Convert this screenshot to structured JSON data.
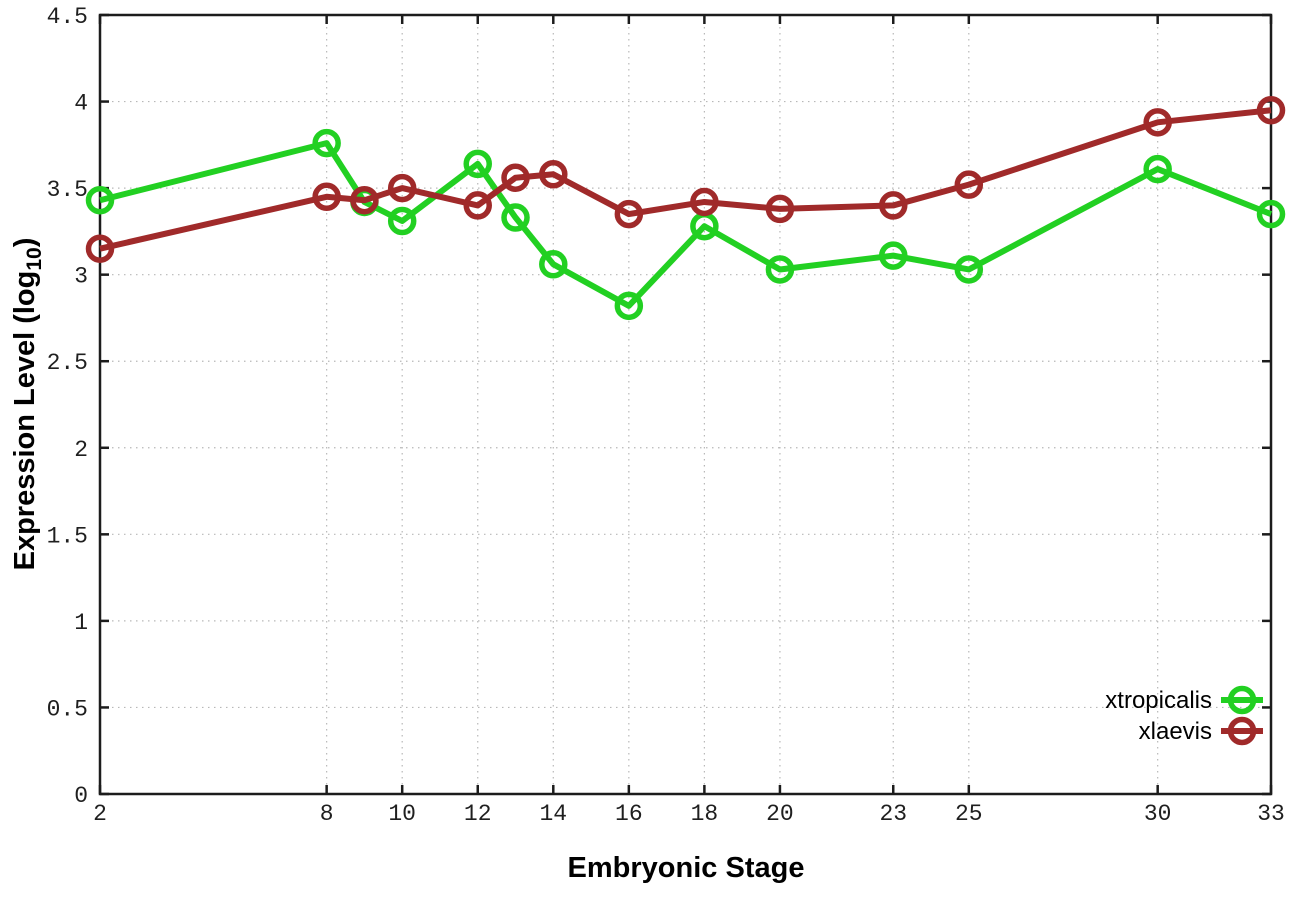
{
  "chart_data": {
    "type": "line",
    "title": "",
    "xlabel": "Embryonic Stage",
    "ylabel": "Expression Level (log10)",
    "ylabel_parts": {
      "main": "Expression Level (log",
      "sub": "10",
      "close": ")"
    },
    "x": [
      2,
      8,
      9,
      10,
      12,
      13,
      14,
      16,
      18,
      20,
      23,
      25,
      30,
      33
    ],
    "x_tick_values": [
      2,
      8,
      10,
      12,
      14,
      16,
      18,
      20,
      23,
      25,
      30,
      33
    ],
    "x_tick_labels": [
      "2",
      "8",
      "10",
      "12",
      "14",
      "16",
      "18",
      "20",
      "23",
      "25",
      "30",
      "33"
    ],
    "y_tick_values": [
      0,
      0.5,
      1,
      1.5,
      2,
      2.5,
      3,
      3.5,
      4,
      4.5
    ],
    "y_tick_labels": [
      "0",
      "0.5",
      "1",
      "1.5",
      "2",
      "2.5",
      "3",
      "3.5",
      "4",
      "4.5"
    ],
    "xlim": [
      2,
      33
    ],
    "ylim": [
      0,
      4.5
    ],
    "grid": true,
    "legend_position": "bottom-right",
    "series": [
      {
        "name": "xtropicalis",
        "color": "#22d022",
        "values": [
          3.43,
          3.76,
          3.42,
          3.31,
          3.64,
          3.33,
          3.06,
          2.82,
          3.28,
          3.03,
          3.11,
          3.03,
          3.61,
          3.35
        ]
      },
      {
        "name": "xlaevis",
        "color": "#a02a2a",
        "values": [
          3.15,
          3.45,
          3.43,
          3.5,
          3.4,
          3.56,
          3.58,
          3.35,
          3.42,
          3.38,
          3.4,
          3.52,
          3.88,
          3.95
        ]
      }
    ],
    "style": {
      "grid_color": "#b8b8b8",
      "border_color": "#1c1c1c",
      "line_width": 6,
      "marker_radius": 11.5,
      "marker_stroke": 5.5
    }
  }
}
